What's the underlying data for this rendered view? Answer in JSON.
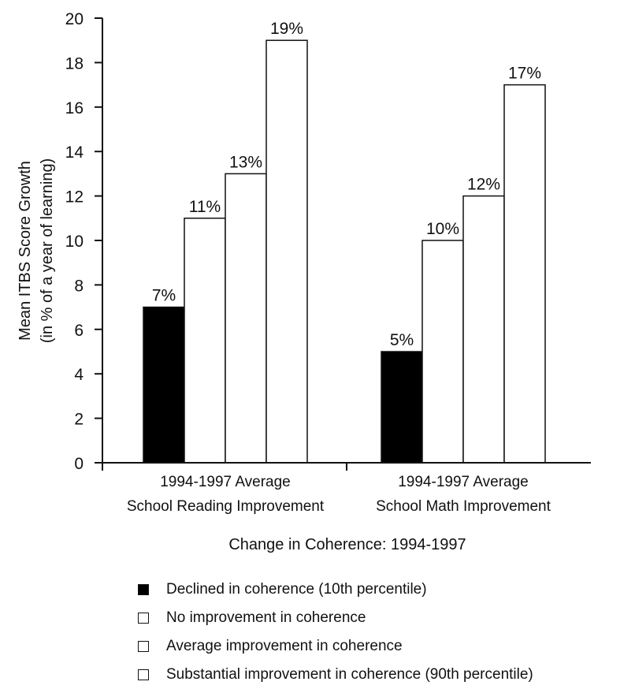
{
  "chart_data": {
    "type": "bar",
    "ylabel_line1": "Mean ITBS Score Growth",
    "ylabel_line2": "(in % of a year of learning)",
    "xlabel": "Change in Coherence: 1994-1997",
    "ylim": [
      0,
      20
    ],
    "yticks": [
      0,
      2,
      4,
      6,
      8,
      10,
      12,
      14,
      16,
      18,
      20
    ],
    "grid": false,
    "legend_position": "bottom",
    "categories": [
      {
        "line1": "1994-1997 Average",
        "line2": "School Reading Improvement"
      },
      {
        "line1": "1994-1997 Average",
        "line2": "School Math Improvement"
      }
    ],
    "series": [
      {
        "name": "Declined in coherence (10th percentile)",
        "color": "#000000",
        "values": [
          7,
          5
        ],
        "labels": [
          "7%",
          "5%"
        ]
      },
      {
        "name": "No improvement in coherence",
        "color": "#ffffff",
        "values": [
          11,
          10
        ],
        "labels": [
          "11%",
          "10%"
        ]
      },
      {
        "name": "Average improvement in coherence",
        "color": "#ffffff",
        "values": [
          13,
          12
        ],
        "labels": [
          "13%",
          "12%"
        ]
      },
      {
        "name": "Substantial improvement in coherence (90th percentile)",
        "color": "#ffffff",
        "values": [
          19,
          17
        ],
        "labels": [
          "19%",
          "17%"
        ]
      }
    ]
  }
}
